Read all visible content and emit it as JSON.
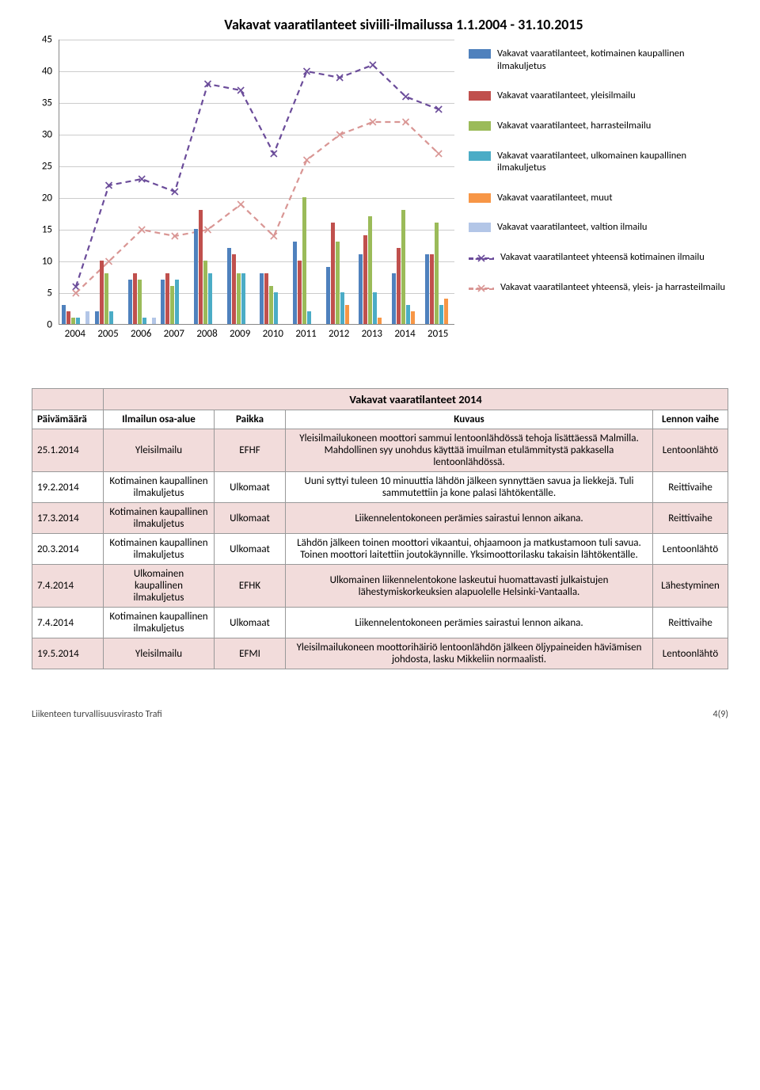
{
  "chart": {
    "title": "Vakavat vaaratilanteet siviili-ilmailussa 1.1.2004 - 31.10.2015",
    "y": {
      "min": 0,
      "max": 45,
      "step": 5
    },
    "years": [
      "2004",
      "2005",
      "2006",
      "2007",
      "2008",
      "2009",
      "2010",
      "2011",
      "2012",
      "2013",
      "2014",
      "2015"
    ],
    "series_bars": [
      {
        "label": "Vakavat vaaratilanteet, kotimainen kaupallinen ilmakuljetus",
        "color": "#4f81bd",
        "values": [
          3,
          2,
          7,
          7,
          15,
          12,
          8,
          13,
          9,
          11,
          8,
          11
        ]
      },
      {
        "label": "Vakavat vaaratilanteet, yleisilmailu",
        "color": "#c0504d",
        "values": [
          2,
          10,
          8,
          8,
          18,
          11,
          8,
          10,
          16,
          14,
          12,
          11
        ]
      },
      {
        "label": "Vakavat vaaratilanteet, harrasteilmailu",
        "color": "#9bbb59",
        "values": [
          1,
          8,
          7,
          6,
          10,
          8,
          6,
          20,
          13,
          17,
          18,
          16
        ]
      },
      {
        "label": "Vakavat vaaratilanteet, ulkomainen kaupallinen ilmakuljetus",
        "color": "#4bacc6",
        "values": [
          1,
          2,
          1,
          7,
          8,
          8,
          5,
          2,
          5,
          5,
          3,
          3
        ]
      },
      {
        "label": "Vakavat vaaratilanteet, muut",
        "color": "#f79646",
        "values": [
          0,
          0,
          0,
          0,
          0,
          0,
          0,
          0,
          3,
          1,
          2,
          4
        ]
      },
      {
        "label": "Vakavat vaaratilanteet, valtion ilmailu",
        "color": "#b3c6e7",
        "values": [
          2,
          0,
          1,
          0,
          0,
          0,
          0,
          0,
          0,
          0,
          0,
          0
        ]
      }
    ],
    "series_lines": [
      {
        "label": "Vakavat vaaratilanteet yhteensä kotimainen ilmailu",
        "color": "#6b4c9a",
        "marker": "x",
        "values": [
          6,
          22,
          23,
          21,
          38,
          37,
          27,
          40,
          39,
          41,
          36,
          34
        ]
      },
      {
        "label": "Vakavat vaaratilanteet yhteensä, yleis- ja harrasteilmailu",
        "color": "#d99694",
        "marker": "x",
        "values": [
          5,
          10,
          15,
          14,
          15,
          19,
          14,
          26,
          30,
          32,
          32,
          27
        ]
      }
    ]
  },
  "table": {
    "title": "Vakavat vaaratilanteet 2014",
    "columns": [
      "Päivämäärä",
      "Ilmailun osa-alue",
      "Paikka",
      "Kuvaus",
      "Lennon vaihe"
    ],
    "rows": [
      {
        "date": "25.1.2014",
        "area": "Yleisilmailu",
        "place": "EFHF",
        "desc": "Yleisilmailukoneen moottori sammui lentoonlähdössä tehoja lisättäessä Malmilla. Mahdollinen syy unohdus käyttää imuilman etulämmitystä pakkasella lentoonlähdössä.",
        "phase": "Lentoonlähtö"
      },
      {
        "date": "19.2.2014",
        "area": "Kotimainen kaupallinen ilmakuljetus",
        "place": "Ulkomaat",
        "desc": "Uuni syttyi tuleen 10 minuuttia lähdön jälkeen synnyttäen savua ja liekkejä. Tuli sammutettiin ja kone palasi lähtökentälle.",
        "phase": "Reittivaihe"
      },
      {
        "date": "17.3.2014",
        "area": "Kotimainen kaupallinen ilmakuljetus",
        "place": "Ulkomaat",
        "desc": "Liikennelentokoneen perämies sairastui lennon aikana.",
        "phase": "Reittivaihe"
      },
      {
        "date": "20.3.2014",
        "area": "Kotimainen kaupallinen ilmakuljetus",
        "place": "Ulkomaat",
        "desc": "Lähdön jälkeen toinen moottori vikaantui, ohjaamoon ja matkustamoon tuli savua. Toinen moottori laitettiin joutokäynnille. Yksimoottorilasku takaisin lähtökentälle.",
        "phase": "Lentoonlähtö"
      },
      {
        "date": "7.4.2014",
        "area": "Ulkomainen kaupallinen ilmakuljetus",
        "place": "EFHK",
        "desc": "Ulkomainen liikennelentokone laskeutui huomattavasti julkaistujen lähestymiskorkeuksien alapuolelle Helsinki-Vantaalla.",
        "phase": "Lähestyminen"
      },
      {
        "date": "7.4.2014",
        "area": "Kotimainen kaupallinen ilmakuljetus",
        "place": "Ulkomaat",
        "desc": "Liikennelentokoneen perämies sairastui lennon aikana.",
        "phase": "Reittivaihe"
      },
      {
        "date": "19.5.2014",
        "area": "Yleisilmailu",
        "place": "EFMI",
        "desc": "Yleisilmailukoneen moottorihäiriö lentoonlähdön jälkeen öljypaineiden häviämisen johdosta, lasku Mikkeliin normaalisti.",
        "phase": "Lentoonlähtö"
      }
    ]
  },
  "footer": {
    "left": "Liikenteen turvallisuusvirasto Trafi",
    "right": "4(9)"
  }
}
